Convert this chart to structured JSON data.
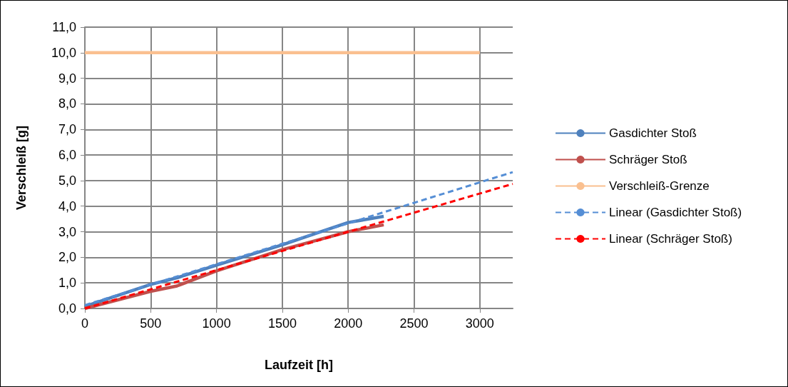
{
  "chart_data": {
    "type": "line",
    "xlabel": "Laufzeit [h]",
    "ylabel": "Verschleiß [g]",
    "x": [
      0,
      500,
      700,
      1000,
      1500,
      1750,
      2000,
      2270
    ],
    "series": [
      {
        "name": "Gasdichter Stoß",
        "color": "#4f81bd",
        "values": [
          0.08,
          0.94,
          1.2,
          1.69,
          2.49,
          2.93,
          3.36,
          3.6
        ],
        "line_style": "solid"
      },
      {
        "name": "Schräger Stoß",
        "color": "#c0504d",
        "values": [
          0,
          0.67,
          0.88,
          1.47,
          2.3,
          2.65,
          3.0,
          3.27
        ],
        "line_style": "solid"
      },
      {
        "name": "Verschleiß-Grenze",
        "color": "#fac090",
        "x": [
          0,
          3000
        ],
        "values": [
          10,
          10
        ],
        "line_style": "solid"
      },
      {
        "name": "Linear (Gasdichter Stoß)",
        "color": "#558ed5",
        "x": [
          0,
          3250
        ],
        "values": [
          0.13,
          5.33
        ],
        "line_style": "dashed"
      },
      {
        "name": "Linear (Schräger Stoß)",
        "color": "#ff0000",
        "x": [
          0,
          3250
        ],
        "values": [
          0,
          4.87
        ],
        "line_style": "dashed"
      }
    ],
    "xlim": [
      0,
      3250
    ],
    "xticks": [
      0,
      500,
      1000,
      1500,
      2000,
      2500,
      3000
    ],
    "ylim": [
      0,
      11
    ],
    "yticks": [
      {
        "value": 0,
        "label": "0,0"
      },
      {
        "value": 1,
        "label": "1,0"
      },
      {
        "value": 2,
        "label": "2,0"
      },
      {
        "value": 3,
        "label": "3,0"
      },
      {
        "value": 4,
        "label": "4,0"
      },
      {
        "value": 5,
        "label": "5,0"
      },
      {
        "value": 6,
        "label": "6,0"
      },
      {
        "value": 7,
        "label": "7,0"
      },
      {
        "value": 8,
        "label": "8,0"
      },
      {
        "value": 9,
        "label": "9,0"
      },
      {
        "value": 10,
        "label": "10,0"
      },
      {
        "value": 11,
        "label": "11,0"
      }
    ],
    "grid": true,
    "legend": "right",
    "marker": "none"
  }
}
